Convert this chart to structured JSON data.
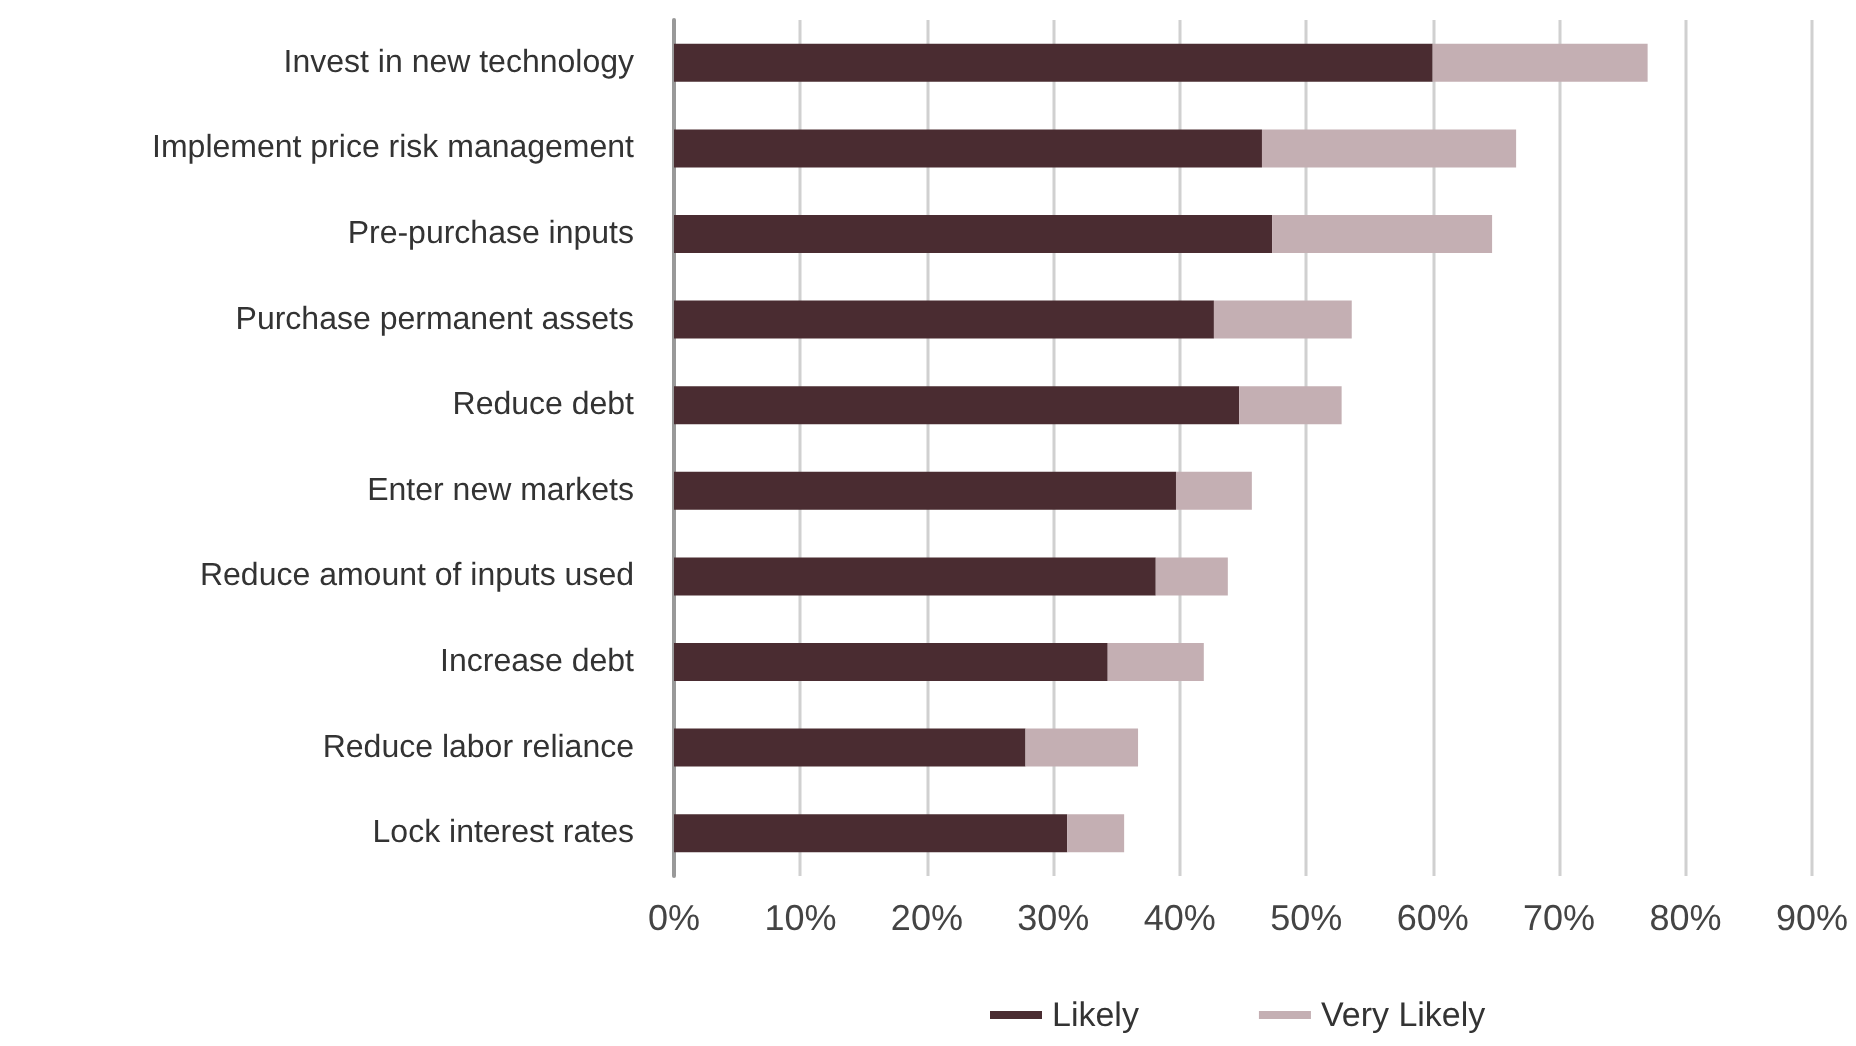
{
  "chart_data": {
    "type": "bar",
    "orientation": "horizontal",
    "stacked": true,
    "categories": [
      "Invest in new technology",
      "Implement price risk management",
      "Pre-purchase inputs",
      "Purchase permanent assets",
      "Reduce debt",
      "Enter new markets",
      "Reduce amount of inputs used",
      "Increase debt",
      "Reduce labor reliance",
      "Lock interest rates"
    ],
    "series": [
      {
        "name": "Likely",
        "color": "#4a2c31",
        "values": [
          60.0,
          46.5,
          47.3,
          42.7,
          44.7,
          39.7,
          38.1,
          34.3,
          27.8,
          31.1
        ]
      },
      {
        "name": "Very Likely",
        "color": "#c4afb3",
        "values": [
          17.0,
          20.1,
          17.4,
          10.9,
          8.1,
          6.0,
          5.7,
          7.6,
          8.9,
          4.5
        ]
      }
    ],
    "xlim": [
      0,
      90
    ],
    "xticks": [
      {
        "value": 0,
        "label": "0%"
      },
      {
        "value": 10,
        "label": "10%"
      },
      {
        "value": 20,
        "label": "20%"
      },
      {
        "value": 30,
        "label": "30%"
      },
      {
        "value": 40,
        "label": "40%"
      },
      {
        "value": 50,
        "label": "50%"
      },
      {
        "value": 60,
        "label": "60%"
      },
      {
        "value": 70,
        "label": "70%"
      },
      {
        "value": 80,
        "label": "80%"
      },
      {
        "value": 90,
        "label": "90%"
      }
    ],
    "grid": "x",
    "legend": "bottom"
  }
}
